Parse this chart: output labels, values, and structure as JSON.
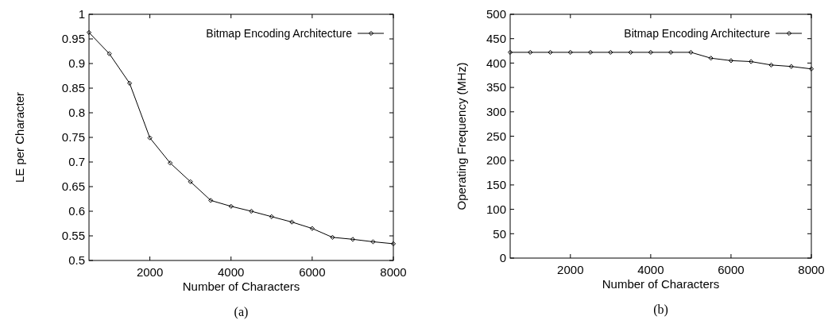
{
  "chart_data": [
    {
      "type": "line",
      "xlabel": "Number of Characters",
      "ylabel": "LE per Character",
      "annotations": [
        "(a)"
      ],
      "x": [
        500,
        1000,
        1500,
        2000,
        2500,
        3000,
        3500,
        4000,
        4500,
        5000,
        5500,
        6000,
        6500,
        7000,
        7500,
        8000
      ],
      "series": [
        {
          "name": "Bitmap Encoding Architecture",
          "color": "#000000",
          "values": [
            0.963,
            0.92,
            0.86,
            0.749,
            0.698,
            0.66,
            0.622,
            0.61,
            0.6,
            0.589,
            0.578,
            0.565,
            0.547,
            0.543,
            0.538,
            0.534
          ]
        }
      ],
      "xlim": [
        500,
        8000
      ],
      "xticks": [
        2000,
        4000,
        6000,
        8000
      ],
      "ylim": [
        0.5,
        1
      ],
      "yticks": [
        0.5,
        0.55,
        0.6,
        0.65,
        0.7,
        0.75,
        0.8,
        0.85,
        0.9,
        0.95,
        1
      ],
      "legend": "top right",
      "marker": "diamond",
      "line_style": "solid"
    },
    {
      "type": "line",
      "xlabel": "Number of Characters",
      "ylabel": "Operating Frequency (MHz)",
      "annotations": [
        "(b)"
      ],
      "x": [
        500,
        1000,
        1500,
        2000,
        2500,
        3000,
        3500,
        4000,
        4500,
        5000,
        5500,
        6000,
        6500,
        7000,
        7500,
        8000
      ],
      "series": [
        {
          "name": "Bitmap Encoding Architecture",
          "color": "#000000",
          "values": [
            422,
            422,
            422,
            422,
            422,
            422,
            422,
            422,
            422,
            422,
            410,
            405,
            403,
            396,
            393,
            388
          ]
        }
      ],
      "xlim": [
        500,
        8000
      ],
      "xticks": [
        2000,
        4000,
        6000,
        8000
      ],
      "ylim": [
        0,
        500
      ],
      "yticks": [
        0,
        50,
        100,
        150,
        200,
        250,
        300,
        350,
        400,
        450,
        500
      ],
      "legend": "top right",
      "marker": "diamond",
      "line_style": "solid"
    }
  ]
}
